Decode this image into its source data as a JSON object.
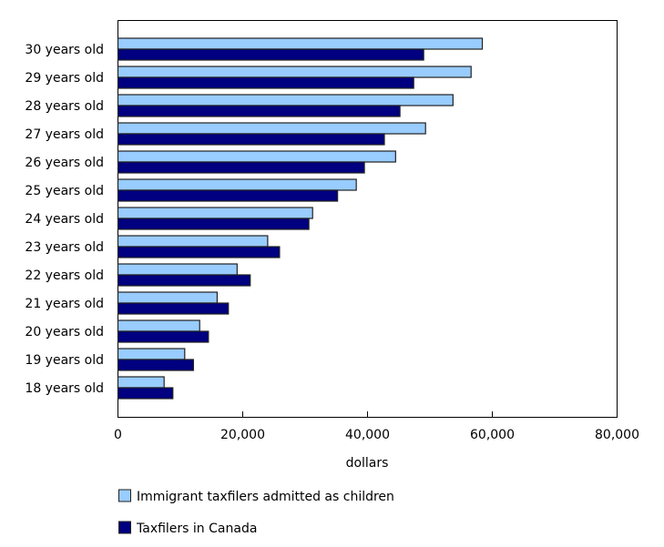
{
  "chart_data": {
    "type": "bar",
    "orientation": "horizontal",
    "categories": [
      "30 years old",
      "29 years old",
      "28 years old",
      "27 years old",
      "26 years old",
      "25 years old",
      "24 years old",
      "23 years old",
      "22 years old",
      "21 years old",
      "20 years old",
      "19 years old",
      "18 years old"
    ],
    "series": [
      {
        "name": "Immigrant taxfilers admitted as children",
        "color": "#99ccff",
        "values": [
          58400,
          56600,
          53700,
          49300,
          44500,
          38200,
          31200,
          24000,
          19100,
          15900,
          13100,
          10700,
          7400
        ]
      },
      {
        "name": "Taxfilers in Canada",
        "color": "#000080",
        "values": [
          49000,
          47400,
          45200,
          42700,
          39500,
          35200,
          30600,
          25900,
          21200,
          17700,
          14500,
          12100,
          8800
        ]
      }
    ],
    "xlabel": "dollars",
    "xlim": [
      0,
      80000
    ],
    "xticks": [
      0,
      20000,
      40000,
      60000,
      80000
    ],
    "xtick_labels": [
      "0",
      "20,000",
      "40,000",
      "60,000",
      "80,000"
    ],
    "grid": false,
    "legend_position": "bottom"
  }
}
